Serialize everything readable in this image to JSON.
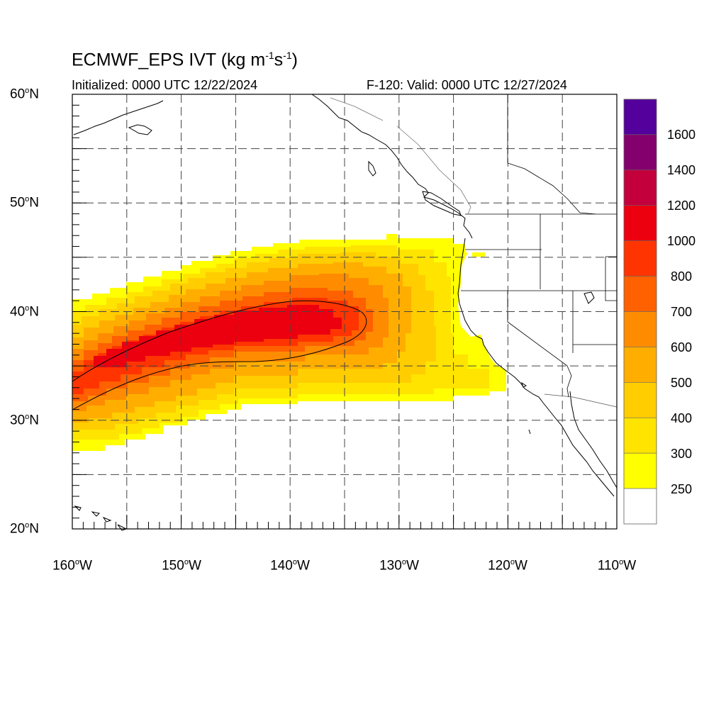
{
  "title": {
    "model": "ECMWF_EPS",
    "variable": "IVT (kg m",
    "exp1": "-1",
    "mid": "s",
    "exp2": "-1",
    "close": ")"
  },
  "subtitle_left": "Initialized: 0000 UTC 12/22/2024",
  "subtitle_right": "F-120: Valid: 0000 UTC 12/27/2024",
  "degree_symbol": "o",
  "lat_labels": [
    {
      "num": "60",
      "hem": "N"
    },
    {
      "num": "50",
      "hem": "N"
    },
    {
      "num": "40",
      "hem": "N"
    },
    {
      "num": "30",
      "hem": "N"
    },
    {
      "num": "20",
      "hem": "N"
    }
  ],
  "lon_labels": [
    {
      "num": "160",
      "hem": "W"
    },
    {
      "num": "150",
      "hem": "W"
    },
    {
      "num": "140",
      "hem": "W"
    },
    {
      "num": "130",
      "hem": "W"
    },
    {
      "num": "120",
      "hem": "W"
    },
    {
      "num": "110",
      "hem": "W"
    }
  ],
  "map_extent": {
    "lon_min": -160,
    "lon_max": -110,
    "lat_min": 20,
    "lat_max": 60
  },
  "colorbar": {
    "labels": [
      "1600",
      "1400",
      "1200",
      "1000",
      "800",
      "700",
      "600",
      "500",
      "400",
      "300",
      "250"
    ],
    "colors_top_to_bottom": [
      "#54009c",
      "#84006c",
      "#c4003c",
      "#ec0010",
      "#ff3400",
      "#ff6000",
      "#ff8c00",
      "#ffae00",
      "#ffcd00",
      "#ffe400",
      "#ffff00",
      "#ffffff"
    ]
  },
  "fill_colors": {
    "c250": "#ffff00",
    "c300": "#ffe400",
    "c400": "#ffcd00",
    "c500": "#ffae00",
    "c600": "#ff8c00",
    "c700": "#ff6000",
    "c800": "#ff3400",
    "c1000": "#ec0010"
  },
  "grid": {
    "style": "dashed",
    "lon_step": 5,
    "lat_step": 5
  }
}
